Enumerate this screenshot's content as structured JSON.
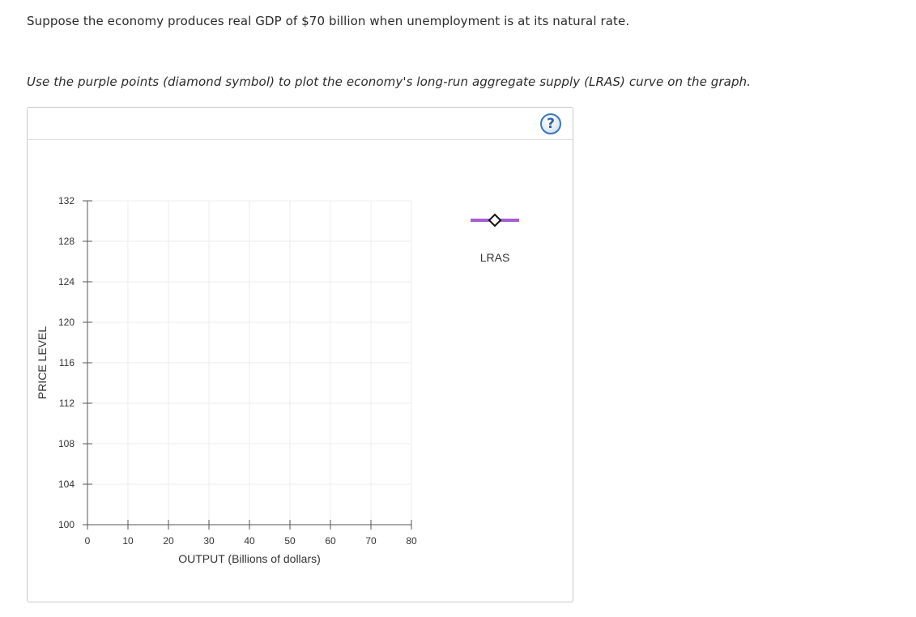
{
  "question": {
    "prompt": "Suppose the economy produces real GDP of $70 billion when unemployment is at its natural rate.",
    "instruction": "Use the purple points (diamond symbol) to plot the economy's long-run aggregate supply (LRAS) curve on the graph."
  },
  "help": {
    "glyph": "?",
    "icon": "help-question-icon"
  },
  "colors": {
    "lras_purple": "#a45fd0",
    "help_blue": "#3a78b8",
    "gridline": "#eeeeee",
    "axis": "#555555"
  },
  "chart_data": {
    "type": "scatter",
    "xlabel": "OUTPUT (Billions of dollars)",
    "ylabel": "PRICE LEVEL",
    "xlim": [
      0,
      80
    ],
    "ylim": [
      100,
      132
    ],
    "x_ticks": [
      0,
      10,
      20,
      30,
      40,
      50,
      60,
      70,
      80
    ],
    "y_ticks": [
      100,
      104,
      108,
      112,
      116,
      120,
      124,
      128,
      132
    ],
    "grid": true,
    "series": [],
    "legend": [
      {
        "name": "LRAS",
        "marker": "diamond",
        "color": "#a45fd0",
        "position": "right"
      }
    ]
  }
}
